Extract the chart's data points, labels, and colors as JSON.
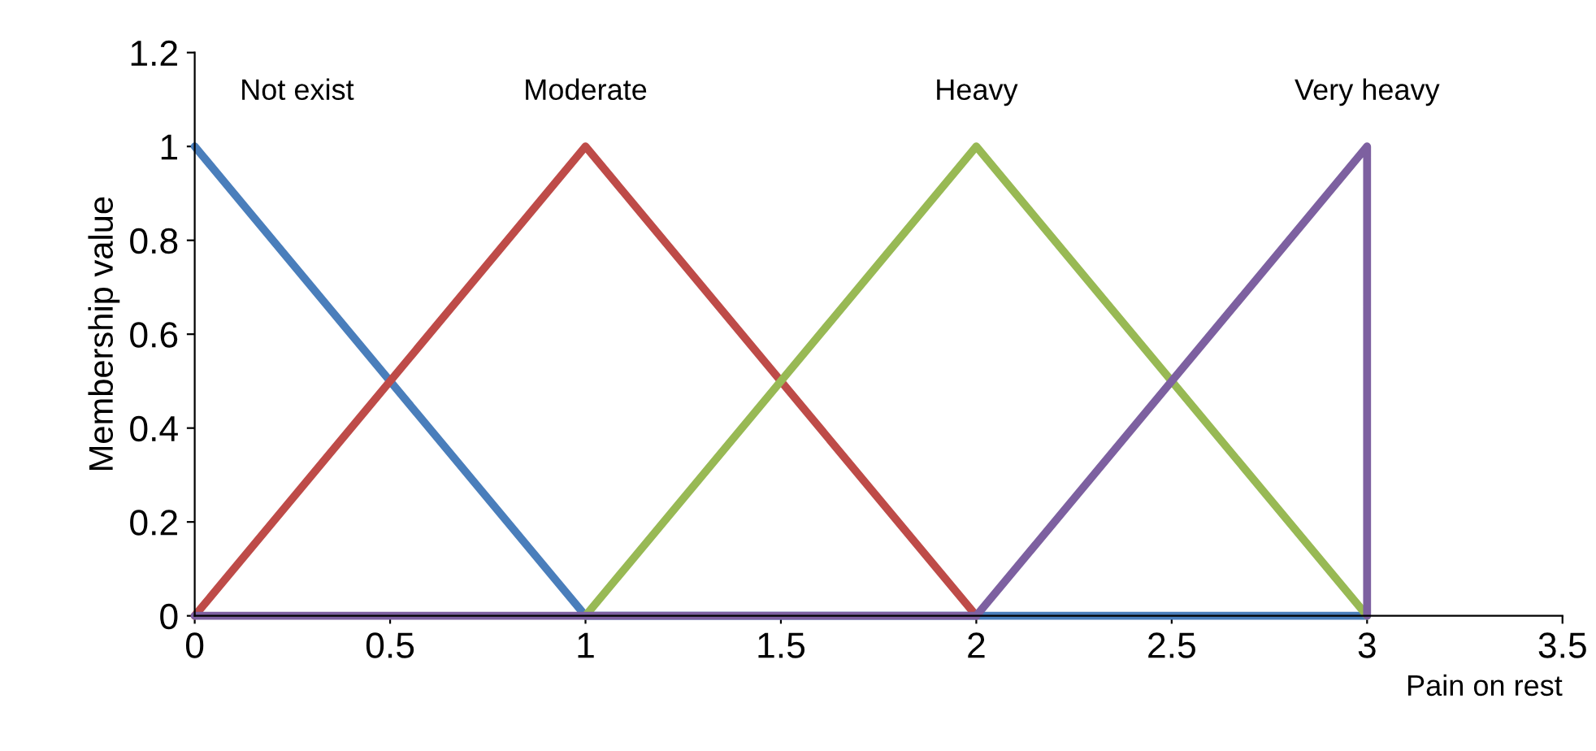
{
  "chart_data": {
    "type": "line",
    "xlabel": "Pain on rest",
    "ylabel": "Membership value",
    "xlim": [
      0,
      3.5
    ],
    "xticks": [
      0,
      0.5,
      1,
      1.5,
      2,
      2.5,
      3,
      3.5
    ],
    "ylim": [
      0,
      1.2
    ],
    "yticks": [
      0,
      0.2,
      0.4,
      0.6,
      0.8,
      1,
      1.2
    ],
    "grid": false,
    "legend": false,
    "marker": "none",
    "line_style": "solid",
    "series": [
      {
        "name": "Not exist",
        "color": "#4a7ebb",
        "x": [
          0,
          1,
          3
        ],
        "values": [
          1,
          0,
          0
        ]
      },
      {
        "name": "Moderate",
        "color": "#be4b48",
        "x": [
          0,
          1,
          2
        ],
        "values": [
          0,
          1,
          0
        ]
      },
      {
        "name": "Heavy",
        "color": "#98b954",
        "x": [
          1,
          2,
          3
        ],
        "values": [
          0,
          1,
          0
        ]
      },
      {
        "name": "Very heavy",
        "color": "#7d60a0",
        "x": [
          0,
          2,
          3,
          3
        ],
        "values": [
          0,
          0,
          1,
          0
        ]
      }
    ]
  }
}
